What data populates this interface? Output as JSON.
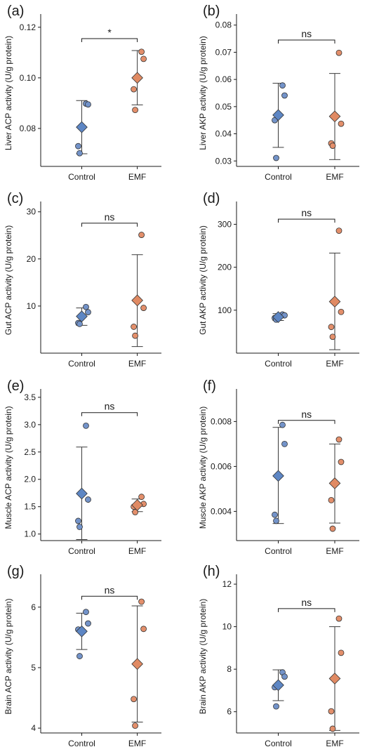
{
  "colors": {
    "control": "#7393c9",
    "emf": "#e38f6b",
    "mean_control": "#5d86c4",
    "mean_emf": "#e08a63",
    "axis": "#1a1a1a",
    "errorbar": "#3a3a3a"
  },
  "chart_data": [
    {
      "type": "scatter",
      "panel": "(a)",
      "ylabel": "Liver ACP activity (U/g protein)",
      "categories": [
        "Control",
        "EMF"
      ],
      "ylim": [
        0.065,
        0.123
      ],
      "yticks": [
        0.08,
        0.1,
        0.12
      ],
      "ytick_labels": [
        "0.08",
        "0.10",
        "0.12"
      ],
      "significance": "*",
      "sig_y": 0.1155,
      "series": [
        {
          "category": "Control",
          "points": [
            0.0898,
            0.0895,
            0.073,
            0.0702
          ],
          "mean": 0.0805,
          "err_low": 0.07,
          "err_high": 0.091
        },
        {
          "category": "EMF",
          "points": [
            0.1103,
            0.1075,
            0.0955,
            0.0873
          ],
          "mean": 0.1,
          "err_low": 0.0893,
          "err_high": 0.1108
        }
      ]
    },
    {
      "type": "scatter",
      "panel": "(b)",
      "ylabel": "Liver AKP activity (U/g protein)",
      "categories": [
        "Control",
        "EMF"
      ],
      "ylim": [
        0.028,
        0.082
      ],
      "yticks": [
        0.03,
        0.04,
        0.05,
        0.06,
        0.07,
        0.08
      ],
      "ytick_labels": [
        "0.03",
        "0.04",
        "0.05",
        "0.06",
        "0.07",
        "0.08"
      ],
      "significance": "ns",
      "sig_y": 0.0745,
      "series": [
        {
          "category": "Control",
          "points": [
            0.0578,
            0.0541,
            0.045,
            0.0311
          ],
          "mean": 0.0469,
          "err_low": 0.035,
          "err_high": 0.0586
        },
        {
          "category": "EMF",
          "points": [
            0.0698,
            0.0437,
            0.0365,
            0.0356
          ],
          "mean": 0.0464,
          "err_low": 0.0305,
          "err_high": 0.0622
        }
      ]
    },
    {
      "type": "scatter",
      "panel": "(c)",
      "ylabel": "Gut ACP activity (U/g protein)",
      "categories": [
        "Control",
        "EMF"
      ],
      "ylim": [
        0,
        31
      ],
      "yticks": [
        10,
        20,
        30
      ],
      "ytick_labels": [
        "10",
        "20",
        "30"
      ],
      "significance": "ns",
      "sig_y": 27.6,
      "series": [
        {
          "category": "Control",
          "points": [
            9.8,
            8.7,
            6.4,
            6.2
          ],
          "mean": 7.8,
          "err_low": 5.9,
          "err_high": 9.6
        },
        {
          "category": "EMF",
          "points": [
            25.1,
            9.6,
            5.6,
            3.7
          ],
          "mean": 11.2,
          "err_low": 1.4,
          "err_high": 20.9
        }
      ]
    },
    {
      "type": "scatter",
      "panel": "(d)",
      "ylabel": "Gut AKP activity (U/g protein)",
      "categories": [
        "Control",
        "EMF"
      ],
      "ylim": [
        0,
        340
      ],
      "yticks": [
        100,
        200,
        300
      ],
      "ytick_labels": [
        "100",
        "200",
        "300"
      ],
      "significance": "ns",
      "sig_y": 312,
      "series": [
        {
          "category": "Control",
          "points": [
            90,
            88,
            82,
            78
          ],
          "mean": 84,
          "err_low": 76,
          "err_high": 92
        },
        {
          "category": "EMF",
          "points": [
            285,
            96,
            61,
            38
          ],
          "mean": 120,
          "err_low": 8,
          "err_high": 233
        }
      ]
    },
    {
      "type": "scatter",
      "panel": "(e)",
      "ylabel": "Muscle ACP activity (U/g protein)",
      "categories": [
        "Control",
        "EMF"
      ],
      "ylim": [
        0.88,
        3.55
      ],
      "yticks": [
        1.0,
        1.5,
        2.0,
        2.5,
        3.0,
        3.5
      ],
      "ytick_labels": [
        "1.0",
        "1.5",
        "2.0",
        "2.5",
        "3.0",
        "3.5"
      ],
      "significance": "ns",
      "sig_y": 3.22,
      "series": [
        {
          "category": "Control",
          "points": [
            2.98,
            1.63,
            1.24,
            1.13
          ],
          "mean": 1.74,
          "err_low": 0.9,
          "err_high": 2.59
        },
        {
          "category": "EMF",
          "points": [
            1.68,
            1.55,
            1.5,
            1.4
          ],
          "mean": 1.53,
          "err_low": 1.41,
          "err_high": 1.64
        }
      ]
    },
    {
      "type": "scatter",
      "panel": "(f)",
      "ylabel": "Muscle AKP activity (U/g protein)",
      "categories": [
        "Control",
        "EMF"
      ],
      "ylim": [
        0.0027,
        0.0092
      ],
      "yticks": [
        0.004,
        0.006,
        0.008
      ],
      "ytick_labels": [
        "0.004",
        "0.006",
        "0.008"
      ],
      "significance": "ns",
      "sig_y": 0.00805,
      "series": [
        {
          "category": "Control",
          "points": [
            0.00785,
            0.007,
            0.00385,
            0.00358
          ],
          "mean": 0.00558,
          "err_low": 0.00346,
          "err_high": 0.00774
        },
        {
          "category": "EMF",
          "points": [
            0.0072,
            0.0062,
            0.0045,
            0.00323
          ],
          "mean": 0.00525,
          "err_low": 0.00348,
          "err_high": 0.007
        }
      ]
    },
    {
      "type": "scatter",
      "panel": "(g)",
      "ylabel": "Brain ACP activity (U/g protein)",
      "categories": [
        "Control",
        "EMF"
      ],
      "ylim": [
        3.92,
        6.45
      ],
      "yticks": [
        4,
        5,
        6
      ],
      "ytick_labels": [
        "4",
        "5",
        "6"
      ],
      "significance": "ns",
      "sig_y": 6.18,
      "series": [
        {
          "category": "Control",
          "points": [
            5.92,
            5.73,
            5.63,
            5.19
          ],
          "mean": 5.6,
          "err_low": 5.3,
          "err_high": 5.9
        },
        {
          "category": "EMF",
          "points": [
            6.09,
            5.64,
            4.48,
            4.04
          ],
          "mean": 5.06,
          "err_low": 4.1,
          "err_high": 6.02
        }
      ]
    },
    {
      "type": "scatter",
      "panel": "(h)",
      "ylabel": "Brain AKP activity (U/g protein)",
      "categories": [
        "Control",
        "EMF"
      ],
      "ylim": [
        5.0,
        12.2
      ],
      "yticks": [
        6,
        8,
        10,
        12
      ],
      "ytick_labels": [
        "6",
        "8",
        "10",
        "12"
      ],
      "significance": "ns",
      "sig_y": 10.85,
      "series": [
        {
          "category": "Control",
          "points": [
            7.85,
            7.65,
            7.15,
            6.25
          ],
          "mean": 7.25,
          "err_low": 6.52,
          "err_high": 7.97
        },
        {
          "category": "EMF",
          "points": [
            10.38,
            8.77,
            6.02,
            5.2
          ],
          "mean": 7.56,
          "err_low": 5.12,
          "err_high": 10.0
        }
      ]
    }
  ]
}
